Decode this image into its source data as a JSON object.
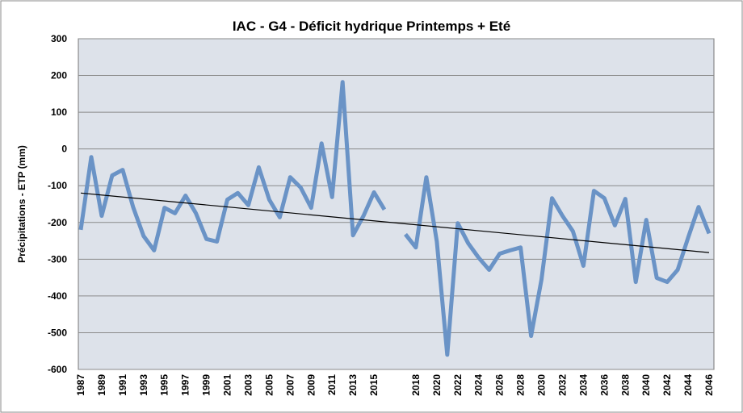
{
  "chart_data": {
    "type": "line",
    "title": "IAC - G4 - Déficit hydrique Printemps + Eté",
    "y_label": "Précipitations - ETP (mm)",
    "categories": [
      "1987",
      null,
      "1989",
      null,
      "1991",
      null,
      "1993",
      null,
      "1995",
      null,
      "1997",
      null,
      "1999",
      null,
      "2001",
      null,
      "2003",
      null,
      "2005",
      null,
      "2007",
      null,
      "2009",
      null,
      "2011",
      null,
      "2013",
      null,
      "2015",
      null,
      null,
      null,
      "2018",
      null,
      "2020",
      null,
      "2022",
      null,
      "2024",
      null,
      "2026",
      null,
      "2028",
      null,
      "2030",
      null,
      "2032",
      null,
      "2034",
      null,
      "2036",
      null,
      "2038",
      null,
      "2040",
      null,
      "2042",
      null,
      "2044",
      null,
      "2046"
    ],
    "series": [
      {
        "name": "Précipitations - ETP",
        "color": "#6a93c6",
        "values": [
          -220,
          -22,
          -182,
          -72,
          -57,
          -158,
          -237,
          -276,
          -160,
          -175,
          -127,
          -175,
          -245,
          -252,
          -138,
          -120,
          -153,
          -50,
          -138,
          -186,
          -77,
          -105,
          -160,
          15,
          -131,
          182,
          -235,
          -182,
          -118,
          -165,
          null,
          -232,
          -268,
          -77,
          -252,
          -560,
          -202,
          -257,
          -296,
          -329,
          -285,
          -276,
          -268,
          -509,
          -355,
          -134,
          -182,
          -224,
          -318,
          -114,
          -134,
          -208,
          -136,
          -362,
          -193,
          -351,
          -362,
          -329,
          -241,
          -158,
          -230
        ]
      }
    ],
    "trend": {
      "start": -120,
      "end": -282,
      "color": "#000000"
    },
    "ylim": [
      -600,
      300
    ],
    "yticks": [
      -600,
      -500,
      -400,
      -300,
      -200,
      -100,
      0,
      100,
      200,
      300
    ],
    "grid": true,
    "plot_background": "#dde2ea"
  }
}
